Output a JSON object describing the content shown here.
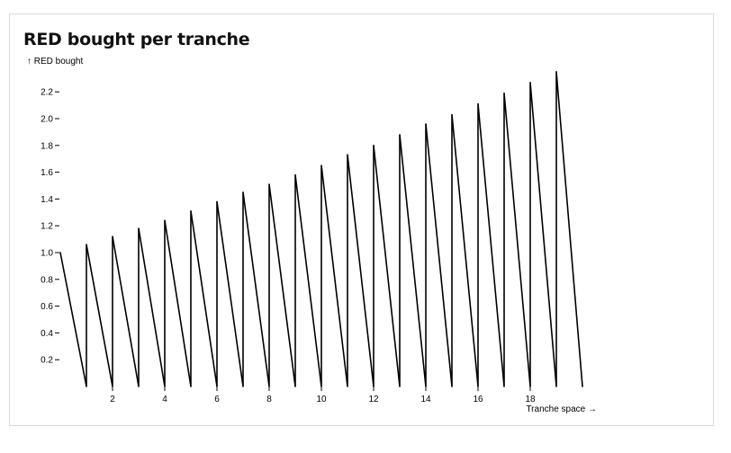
{
  "chart_data": {
    "type": "line",
    "title": "RED bought per tranche",
    "ylabel": "↑ RED bought",
    "xlabel": "Tranche space →",
    "xlim": [
      0,
      20
    ],
    "ylim": [
      0,
      2.4
    ],
    "x_ticks": [
      2,
      4,
      6,
      8,
      10,
      12,
      14,
      16,
      18
    ],
    "y_ticks": [
      0.2,
      0.4,
      0.6,
      0.8,
      1.0,
      1.2,
      1.4,
      1.6,
      1.8,
      2.0,
      2.2
    ],
    "grid": false,
    "legend": "none",
    "series": [
      {
        "color": "#000000",
        "points": [
          [
            0,
            1.0
          ],
          [
            1,
            0
          ],
          [
            1,
            1.06
          ],
          [
            2,
            0
          ],
          [
            2,
            1.12
          ],
          [
            3,
            0
          ],
          [
            3,
            1.18
          ],
          [
            4,
            0
          ],
          [
            4,
            1.24
          ],
          [
            5,
            0
          ],
          [
            5,
            1.31
          ],
          [
            6,
            0
          ],
          [
            6,
            1.38
          ],
          [
            7,
            0
          ],
          [
            7,
            1.45
          ],
          [
            8,
            0
          ],
          [
            8,
            1.51
          ],
          [
            9,
            0
          ],
          [
            9,
            1.58
          ],
          [
            10,
            0
          ],
          [
            10,
            1.65
          ],
          [
            11,
            0
          ],
          [
            11,
            1.73
          ],
          [
            12,
            0
          ],
          [
            12,
            1.8
          ],
          [
            13,
            0
          ],
          [
            13,
            1.88
          ],
          [
            14,
            0
          ],
          [
            14,
            1.96
          ],
          [
            15,
            0
          ],
          [
            15,
            2.03
          ],
          [
            16,
            0
          ],
          [
            16,
            2.11
          ],
          [
            17,
            0
          ],
          [
            17,
            2.19
          ],
          [
            18,
            0
          ],
          [
            18,
            2.27
          ],
          [
            19,
            0
          ],
          [
            19,
            2.35
          ],
          [
            20,
            0
          ]
        ]
      }
    ]
  }
}
